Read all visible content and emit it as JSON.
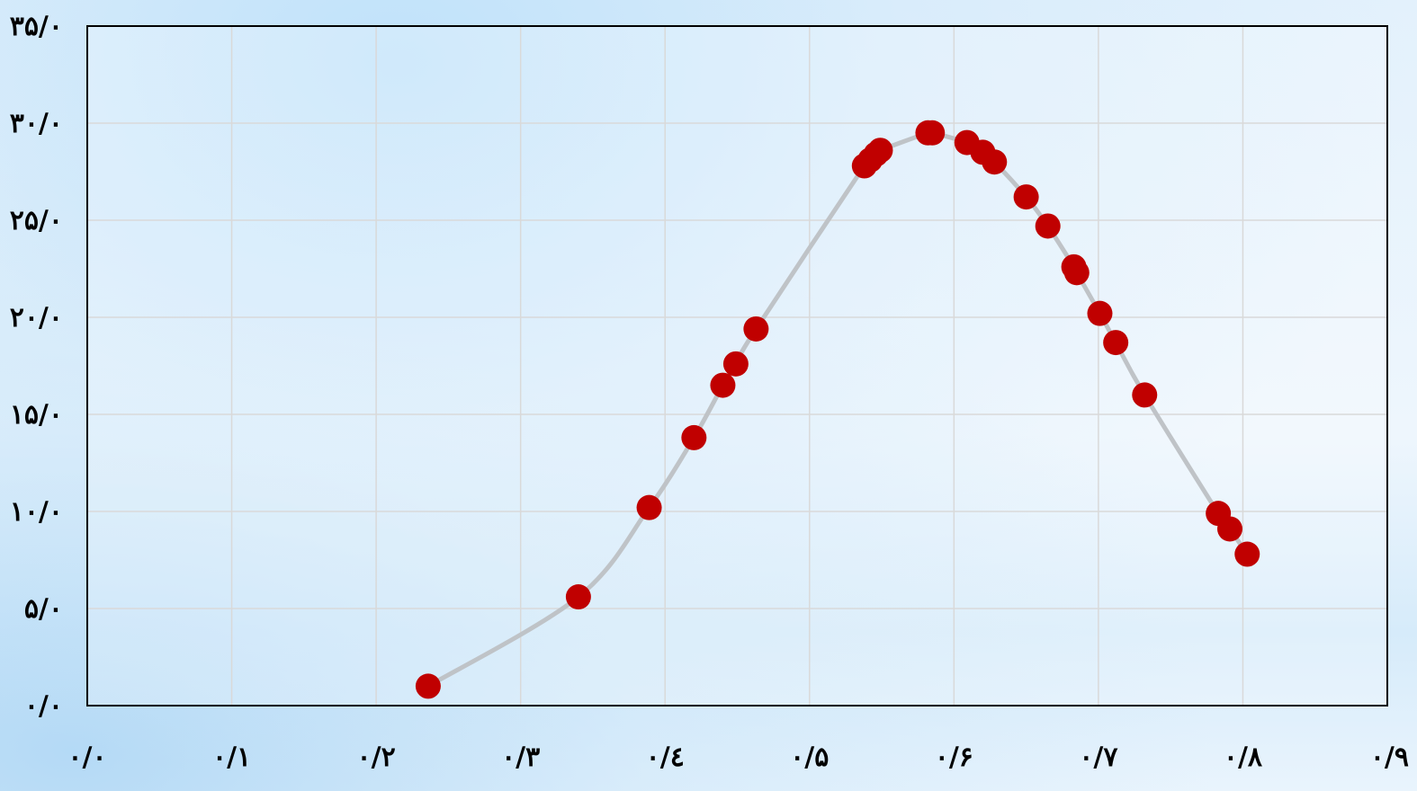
{
  "chart_data": {
    "type": "scatter",
    "title": "",
    "xlabel": "",
    "ylabel": "",
    "xlim": [
      0.0,
      0.9
    ],
    "ylim": [
      0.0,
      35.0
    ],
    "x_ticks": [
      0.0,
      0.1,
      0.2,
      0.3,
      0.4,
      0.5,
      0.6,
      0.7,
      0.8,
      0.9
    ],
    "x_tick_labels": [
      "۰/۰",
      "۰/۱",
      "۰/۲",
      "۰/۳",
      "۰/٤",
      "۰/۵",
      "۰/۶",
      "۰/۷",
      "۰/۸",
      "۰/۹"
    ],
    "y_ticks": [
      0,
      5,
      10,
      15,
      20,
      25,
      30,
      35
    ],
    "y_tick_labels": [
      "۰/۰",
      "۵/۰",
      "۱۰/۰",
      "۱۵/۰",
      "۲۰/۰",
      "۲۵/۰",
      "۳۰/۰",
      "۳۵/۰"
    ],
    "grid": true,
    "legend": "none",
    "colors": {
      "marker": "#c00000",
      "line": "#bfc3c7",
      "grid": "#d9d9d9",
      "axes": "#000000"
    },
    "series": [
      {
        "points": [
          {
            "x": 0.236,
            "y": 1.0
          },
          {
            "x": 0.34,
            "y": 5.6
          },
          {
            "x": 0.389,
            "y": 10.2
          },
          {
            "x": 0.42,
            "y": 13.8
          },
          {
            "x": 0.44,
            "y": 16.5
          },
          {
            "x": 0.449,
            "y": 17.6
          },
          {
            "x": 0.463,
            "y": 19.4
          },
          {
            "x": 0.538,
            "y": 27.8
          },
          {
            "x": 0.542,
            "y": 28.1
          },
          {
            "x": 0.546,
            "y": 28.4
          },
          {
            "x": 0.549,
            "y": 28.6
          },
          {
            "x": 0.582,
            "y": 29.5
          },
          {
            "x": 0.585,
            "y": 29.5
          },
          {
            "x": 0.609,
            "y": 29.0
          },
          {
            "x": 0.62,
            "y": 28.5
          },
          {
            "x": 0.628,
            "y": 28.0
          },
          {
            "x": 0.65,
            "y": 26.2
          },
          {
            "x": 0.665,
            "y": 24.7
          },
          {
            "x": 0.683,
            "y": 22.6
          },
          {
            "x": 0.685,
            "y": 22.3
          },
          {
            "x": 0.701,
            "y": 20.2
          },
          {
            "x": 0.712,
            "y": 18.7
          },
          {
            "x": 0.732,
            "y": 16.0
          },
          {
            "x": 0.783,
            "y": 9.9
          },
          {
            "x": 0.791,
            "y": 9.1
          },
          {
            "x": 0.803,
            "y": 7.8
          }
        ]
      }
    ]
  }
}
